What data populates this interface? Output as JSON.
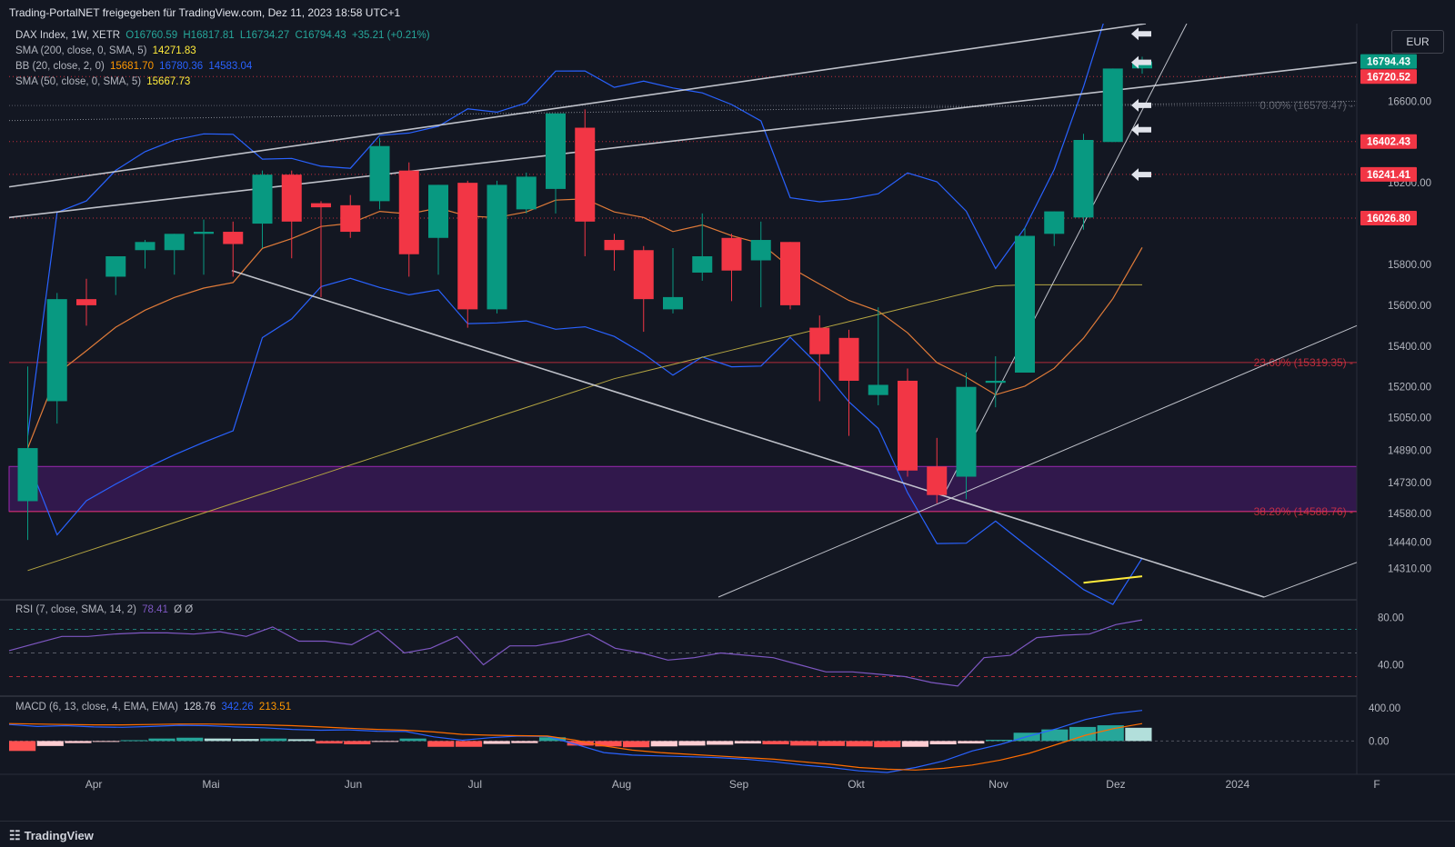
{
  "header": {
    "text": "Trading-PortalNET freigegeben für TradingView.com, Dez 11, 2023 18:58 UTC+1"
  },
  "legend": {
    "main": {
      "symbol": "DAX Index, 1W, XETR",
      "o": "O16760.59",
      "h": "H16817.81",
      "l": "L16734.27",
      "c": "C16794.43",
      "chg": "+35.21 (+0.21%)"
    },
    "sma200": {
      "label": "SMA (200, close, 0, SMA, 5)",
      "value": "14271.83"
    },
    "bb": {
      "label": "BB (20, close, 2, 0)",
      "v1": "15681.70",
      "v2": "16780.36",
      "v3": "14583.04"
    },
    "sma50": {
      "label": "SMA (50, close, 0, SMA, 5)",
      "value": "15667.73"
    },
    "rsi": {
      "label": "RSI (7, close, SMA, 14, 2)",
      "value": "78.41",
      "extra": "Ø  Ø"
    },
    "macd": {
      "label": "MACD (6, 13, close, 4, EMA, EMA)",
      "v1": "128.76",
      "v2": "342.26",
      "v3": "213.51"
    }
  },
  "currency_button": "EUR",
  "footer": {
    "brand": "TradingView"
  },
  "colors": {
    "up": "#089981",
    "down": "#f23645",
    "bg": "#131722",
    "bb": "#2962ff",
    "sma50": "#b5a642",
    "sma200": "#ffeb3b",
    "bbBasis": "#e07b39",
    "rsi": "#7e57c2",
    "zone": "#6a1b9a"
  },
  "chart_data": {
    "type": "candlestick",
    "price_axis": {
      "ylim": [
        14170,
        16980
      ],
      "ticks": [
        {
          "label": "16600.00",
          "value": 16600
        },
        {
          "label": "16200.00",
          "value": 16200
        },
        {
          "label": "15800.00",
          "value": 15800
        },
        {
          "label": "15600.00",
          "value": 15600
        },
        {
          "label": "15400.00",
          "value": 15400
        },
        {
          "label": "15200.00",
          "value": 15200
        },
        {
          "label": "15050.00",
          "value": 15050
        },
        {
          "label": "14890.00",
          "value": 14890
        },
        {
          "label": "14730.00",
          "value": 14730
        },
        {
          "label": "14580.00",
          "value": 14580
        },
        {
          "label": "14440.00",
          "value": 14440
        },
        {
          "label": "14310.00",
          "value": 14310
        }
      ],
      "price_tags": [
        {
          "label": "16794.43",
          "value": 16794.43,
          "color": "#089981"
        },
        {
          "label": "16720.52",
          "value": 16720.52,
          "color": "#f23645"
        },
        {
          "label": "16402.43",
          "value": 16402.43,
          "color": "#f23645"
        },
        {
          "label": "16241.41",
          "value": 16241.41,
          "color": "#f23645"
        },
        {
          "label": "16026.80",
          "value": 16026.8,
          "color": "#f23645"
        }
      ]
    },
    "time_axis": [
      {
        "label": "Apr",
        "week": 2.25
      },
      {
        "label": "Mai",
        "week": 6.25
      },
      {
        "label": "Jun",
        "week": 11.1
      },
      {
        "label": "Jul",
        "week": 15.25
      },
      {
        "label": "Aug",
        "week": 20.25
      },
      {
        "label": "Sep",
        "week": 24.25
      },
      {
        "label": "Okt",
        "week": 28.25
      },
      {
        "label": "Nov",
        "week": 33.1
      },
      {
        "label": "Dez",
        "week": 37.1
      },
      {
        "label": "2024",
        "week": 41.25
      },
      {
        "label": "F",
        "week": 46
      }
    ],
    "candles": [
      {
        "o": 14640,
        "h": 15300,
        "l": 14450,
        "c": 14900
      },
      {
        "o": 15130,
        "h": 15660,
        "l": 15020,
        "c": 15630
      },
      {
        "o": 15630,
        "h": 15730,
        "l": 15500,
        "c": 15600
      },
      {
        "o": 15740,
        "h": 15840,
        "l": 15650,
        "c": 15840
      },
      {
        "o": 15870,
        "h": 15920,
        "l": 15780,
        "c": 15910
      },
      {
        "o": 15870,
        "h": 15950,
        "l": 15750,
        "c": 15950
      },
      {
        "o": 15950,
        "h": 16020,
        "l": 15750,
        "c": 15960
      },
      {
        "o": 15960,
        "h": 16010,
        "l": 15740,
        "c": 15900
      },
      {
        "o": 16000,
        "h": 16260,
        "l": 15880,
        "c": 16240
      },
      {
        "o": 16240,
        "h": 16260,
        "l": 15830,
        "c": 16010
      },
      {
        "o": 16100,
        "h": 16110,
        "l": 15640,
        "c": 16080
      },
      {
        "o": 16090,
        "h": 16140,
        "l": 15930,
        "c": 15960
      },
      {
        "o": 16110,
        "h": 16420,
        "l": 16070,
        "c": 16380
      },
      {
        "o": 16260,
        "h": 16300,
        "l": 15740,
        "c": 15850
      },
      {
        "o": 15930,
        "h": 16190,
        "l": 15750,
        "c": 16190
      },
      {
        "o": 16200,
        "h": 16210,
        "l": 15490,
        "c": 15580
      },
      {
        "o": 15580,
        "h": 16210,
        "l": 15560,
        "c": 16190
      },
      {
        "o": 16070,
        "h": 16250,
        "l": 16050,
        "c": 16230
      },
      {
        "o": 16170,
        "h": 16530,
        "l": 16050,
        "c": 16540
      },
      {
        "o": 16470,
        "h": 16560,
        "l": 15840,
        "c": 16010
      },
      {
        "o": 15920,
        "h": 15950,
        "l": 15770,
        "c": 15870
      },
      {
        "o": 15870,
        "h": 15890,
        "l": 15470,
        "c": 15630
      },
      {
        "o": 15580,
        "h": 15880,
        "l": 15560,
        "c": 15640
      },
      {
        "o": 15760,
        "h": 16050,
        "l": 15720,
        "c": 15840
      },
      {
        "o": 15930,
        "h": 15950,
        "l": 15620,
        "c": 15770
      },
      {
        "o": 15820,
        "h": 16010,
        "l": 15590,
        "c": 15920
      },
      {
        "o": 15910,
        "h": 15910,
        "l": 15580,
        "c": 15600
      },
      {
        "o": 15490,
        "h": 15550,
        "l": 15130,
        "c": 15360
      },
      {
        "o": 15440,
        "h": 15480,
        "l": 14960,
        "c": 15230
      },
      {
        "o": 15160,
        "h": 15590,
        "l": 15110,
        "c": 15210
      },
      {
        "o": 15230,
        "h": 15290,
        "l": 14760,
        "c": 14790
      },
      {
        "o": 14810,
        "h": 14950,
        "l": 14630,
        "c": 14670
      },
      {
        "o": 14760,
        "h": 15270,
        "l": 14650,
        "c": 15200
      },
      {
        "o": 15220,
        "h": 15350,
        "l": 15100,
        "c": 15230
      },
      {
        "o": 15270,
        "h": 15980,
        "l": 15270,
        "c": 15940
      },
      {
        "o": 15950,
        "h": 16060,
        "l": 15890,
        "c": 16060
      },
      {
        "o": 16030,
        "h": 16440,
        "l": 15970,
        "c": 16410
      },
      {
        "o": 16400,
        "h": 16760,
        "l": 16400,
        "c": 16760
      },
      {
        "o": 16760.59,
        "h": 16817.81,
        "l": 16734.27,
        "c": 16794.43
      }
    ],
    "fib_levels": [
      {
        "label": "0.00% (16578.47)",
        "value": 16578.47
      },
      {
        "label": "23.60% (15319.35)",
        "value": 15319.35
      },
      {
        "label": "38.20% (14588.76)",
        "value": 14588.76
      }
    ],
    "zone": {
      "from": 14590,
      "to": 14810
    },
    "rsi": {
      "ylim": [
        15,
        95
      ],
      "ticks": [
        {
          "label": "80.00",
          "value": 80
        },
        {
          "label": "40.00",
          "value": 40
        }
      ],
      "levels": [
        70,
        50,
        30
      ],
      "values": [
        52,
        58,
        64,
        64,
        66,
        67,
        67,
        66,
        68,
        64,
        72,
        60,
        60,
        57,
        69,
        50,
        54,
        64,
        40,
        56,
        56,
        60,
        66,
        54,
        50,
        44,
        46,
        50,
        48,
        46,
        40,
        34,
        34,
        32,
        30,
        25,
        22,
        46,
        48,
        63,
        65,
        66,
        74,
        78
      ]
    },
    "macd": {
      "ylim": [
        -380,
        520
      ],
      "ticks": [
        {
          "label": "400.00",
          "value": 400
        },
        {
          "label": "0.00",
          "value": 0
        }
      ],
      "hist": [
        -120,
        -60,
        -25,
        -10,
        10,
        30,
        40,
        30,
        25,
        30,
        22,
        -30,
        -40,
        -10,
        30,
        -70,
        -70,
        -35,
        -25,
        45,
        -55,
        -65,
        -75,
        -65,
        -55,
        -45,
        -30,
        -40,
        -55,
        -60,
        -65,
        -75,
        -70,
        -40,
        -30,
        15,
        100,
        140,
        170,
        190,
        160
      ],
      "macd": [
        200,
        175,
        185,
        170,
        165,
        175,
        190,
        185,
        170,
        160,
        140,
        130,
        135,
        118,
        115,
        50,
        10,
        40,
        60,
        55,
        -40,
        -140,
        -170,
        -180,
        -190,
        -200,
        -220,
        -250,
        -290,
        -320,
        -360,
        -380,
        -320,
        -240,
        -120,
        -40,
        60,
        150,
        260,
        330,
        370
      ],
      "signal": [
        210,
        205,
        200,
        195,
        195,
        200,
        205,
        205,
        200,
        195,
        185,
        170,
        155,
        140,
        130,
        110,
        80,
        70,
        65,
        60,
        10,
        -60,
        -110,
        -140,
        -160,
        -180,
        -200,
        -220,
        -250,
        -280,
        -320,
        -340,
        -350,
        -330,
        -290,
        -230,
        -150,
        -40,
        70,
        150,
        210
      ]
    }
  }
}
